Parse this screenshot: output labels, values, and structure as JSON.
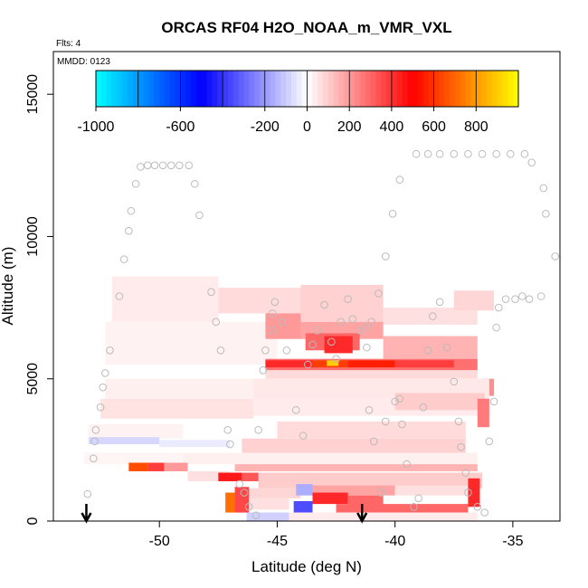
{
  "chart_data": {
    "type": "heatmap",
    "title": "ORCAS RF04 H2O_NOAA_m_VMR_VXL",
    "flights_label": "Flts: 4",
    "date_label": "MMDD: 0123",
    "xlabel": "Latitude (deg N)",
    "ylabel": "Altitude (m)",
    "xlim": [
      -54.5,
      -33
    ],
    "ylim": [
      0,
      16500
    ],
    "x_ticks": [
      -50,
      -45,
      -40,
      -35
    ],
    "x_tick_labels": [
      "-50",
      "-45",
      "-40",
      "-35"
    ],
    "y_ticks": [
      0,
      5000,
      10000,
      15000
    ],
    "y_tick_labels": [
      "0",
      "5000",
      "10000",
      "15000"
    ],
    "colorbar": {
      "range": [
        -1000,
        1000
      ],
      "ticks": [
        -1000,
        -600,
        -200,
        0,
        200,
        400,
        600,
        800
      ],
      "tick_labels": [
        "-1000",
        "-600",
        "-200",
        "0",
        "200",
        "400",
        "600",
        "800"
      ],
      "colors": [
        "#00ffff",
        "#0000ff",
        "#ffffff",
        "#ff0000",
        "#ffff00"
      ]
    },
    "arrow_latitudes": [
      -53.1,
      -41.4
    ],
    "cells": [
      {
        "lat": [
          -52,
          -47.5
        ],
        "alt": [
          7000,
          8600
        ],
        "v": 40
      },
      {
        "lat": [
          -47.5,
          -44
        ],
        "alt": [
          7300,
          8200
        ],
        "v": 70
      },
      {
        "lat": [
          -44,
          -40.5
        ],
        "alt": [
          7000,
          8300
        ],
        "v": 90
      },
      {
        "lat": [
          -40.5,
          -36.5
        ],
        "alt": [
          6900,
          7500
        ],
        "v": 60
      },
      {
        "lat": [
          -37.5,
          -35.8
        ],
        "alt": [
          7400,
          8100
        ],
        "v": 80
      },
      {
        "lat": [
          -52.3,
          -45
        ],
        "alt": [
          5500,
          7000
        ],
        "v": 25
      },
      {
        "lat": [
          -45.5,
          -44
        ],
        "alt": [
          6400,
          7300
        ],
        "v": 200
      },
      {
        "lat": [
          -44,
          -40.5
        ],
        "alt": [
          6400,
          7000
        ],
        "v": 180
      },
      {
        "lat": [
          -43.8,
          -41.5
        ],
        "alt": [
          6000,
          6600
        ],
        "v": 300
      },
      {
        "lat": [
          -43,
          -41.8
        ],
        "alt": [
          5900,
          6500
        ],
        "v": 420
      },
      {
        "lat": [
          -40.5,
          -36.5
        ],
        "alt": [
          5700,
          6500
        ],
        "v": 150
      },
      {
        "lat": [
          -45.5,
          -36.5
        ],
        "alt": [
          5300,
          5700
        ],
        "v": 280
      },
      {
        "lat": [
          -45.5,
          -43.5
        ],
        "alt": [
          5400,
          5650
        ],
        "v": 420
      },
      {
        "lat": [
          -43.5,
          -42
        ],
        "alt": [
          5400,
          5650
        ],
        "v": 620
      },
      {
        "lat": [
          -42.9,
          -42.4
        ],
        "alt": [
          5450,
          5650
        ],
        "v": 900
      },
      {
        "lat": [
          -42,
          -40
        ],
        "alt": [
          5400,
          5650
        ],
        "v": 560
      },
      {
        "lat": [
          -40,
          -37.5
        ],
        "alt": [
          5400,
          5650
        ],
        "v": 380
      },
      {
        "lat": [
          -45.5,
          -36.5
        ],
        "alt": [
          5000,
          5300
        ],
        "v": 70
      },
      {
        "lat": [
          -36.3,
          -35.8
        ],
        "alt": [
          4400,
          5000
        ],
        "v": 220
      },
      {
        "lat": [
          -52.3,
          -46
        ],
        "alt": [
          4300,
          5000
        ],
        "v": 30
      },
      {
        "lat": [
          -46,
          -36
        ],
        "alt": [
          4300,
          5000
        ],
        "v": 45
      },
      {
        "lat": [
          -52.5,
          -46
        ],
        "alt": [
          3600,
          4300
        ],
        "v": 55
      },
      {
        "lat": [
          -46,
          -36
        ],
        "alt": [
          3700,
          4300
        ],
        "v": 40
      },
      {
        "lat": [
          -40,
          -36.2
        ],
        "alt": [
          3900,
          4500
        ],
        "v": 100
      },
      {
        "lat": [
          -36.5,
          -36
        ],
        "alt": [
          3300,
          4300
        ],
        "v": 260
      },
      {
        "lat": [
          -53,
          -49
        ],
        "alt": [
          2900,
          3400
        ],
        "v": 25
      },
      {
        "lat": [
          -45,
          -37
        ],
        "alt": [
          2900,
          3500
        ],
        "v": 70
      },
      {
        "lat": [
          -53,
          -50
        ],
        "alt": [
          2700,
          2950
        ],
        "v": -80
      },
      {
        "lat": [
          -50,
          -47
        ],
        "alt": [
          2600,
          2850
        ],
        "v": -40
      },
      {
        "lat": [
          -46.5,
          -37
        ],
        "alt": [
          2400,
          2900
        ],
        "v": 90
      },
      {
        "lat": [
          -53.2,
          -49
        ],
        "alt": [
          2000,
          2400
        ],
        "v": 20
      },
      {
        "lat": [
          -49,
          -36.5
        ],
        "alt": [
          2000,
          2400
        ],
        "v": 30
      },
      {
        "lat": [
          -46.8,
          -36.5
        ],
        "alt": [
          1750,
          2000
        ],
        "v": 150
      },
      {
        "lat": [
          -51.3,
          -50.5
        ],
        "alt": [
          1750,
          2050
        ],
        "v": 650
      },
      {
        "lat": [
          -50.5,
          -49.8
        ],
        "alt": [
          1750,
          2050
        ],
        "v": 380
      },
      {
        "lat": [
          -49.8,
          -48.8
        ],
        "alt": [
          1750,
          2050
        ],
        "v": 200
      },
      {
        "lat": [
          -48.8,
          -47
        ],
        "alt": [
          1400,
          1750
        ],
        "v": 60
      },
      {
        "lat": [
          -47.5,
          -46.5
        ],
        "alt": [
          1400,
          1700
        ],
        "v": 450
      },
      {
        "lat": [
          -46.5,
          -45.5
        ],
        "alt": [
          1400,
          1700
        ],
        "v": 330
      },
      {
        "lat": [
          -45.8,
          -36.3
        ],
        "alt": [
          1150,
          1700
        ],
        "v": 100
      },
      {
        "lat": [
          -46.5,
          -44
        ],
        "alt": [
          800,
          1150
        ],
        "v": 80
      },
      {
        "lat": [
          -44.2,
          -43.5
        ],
        "alt": [
          900,
          1300
        ],
        "v": -160
      },
      {
        "lat": [
          -43.5,
          -40
        ],
        "alt": [
          900,
          1250
        ],
        "v": 180
      },
      {
        "lat": [
          -40,
          -36.5
        ],
        "alt": [
          900,
          1250
        ],
        "v": 60
      },
      {
        "lat": [
          -36.9,
          -36.4
        ],
        "alt": [
          500,
          1500
        ],
        "v": 420
      },
      {
        "lat": [
          -47.2,
          -46.8
        ],
        "alt": [
          300,
          1000
        ],
        "v": 720
      },
      {
        "lat": [
          -46.8,
          -46.2
        ],
        "alt": [
          300,
          1200
        ],
        "v": 360
      },
      {
        "lat": [
          -46.2,
          -44.5
        ],
        "alt": [
          400,
          800
        ],
        "v": 60
      },
      {
        "lat": [
          -44.3,
          -43.5
        ],
        "alt": [
          300,
          700
        ],
        "v": -350
      },
      {
        "lat": [
          -43.5,
          -42
        ],
        "alt": [
          600,
          1000
        ],
        "v": 420
      },
      {
        "lat": [
          -42,
          -40.5
        ],
        "alt": [
          500,
          900
        ],
        "v": 300
      },
      {
        "lat": [
          -42.5,
          -36.9
        ],
        "alt": [
          300,
          600
        ],
        "v": 300
      },
      {
        "lat": [
          -46.3,
          -44.5
        ],
        "alt": [
          0,
          300
        ],
        "v": -90
      },
      {
        "lat": [
          -44.5,
          -36.5
        ],
        "alt": [
          0,
          300
        ],
        "v": 40
      }
    ],
    "flight_track": [
      [
        -53.05,
        950
      ],
      [
        -52.8,
        2200
      ],
      [
        -52.75,
        2800
      ],
      [
        -52.7,
        3200
      ],
      [
        -52.5,
        4000
      ],
      [
        -52.4,
        4700
      ],
      [
        -52.3,
        5200
      ],
      [
        -52.1,
        6000
      ],
      [
        -51.7,
        7900
      ],
      [
        -51.5,
        9200
      ],
      [
        -51.3,
        10200
      ],
      [
        -51.2,
        10900
      ],
      [
        -51.0,
        11850
      ],
      [
        -50.8,
        12450
      ],
      [
        -50.5,
        12500
      ],
      [
        -50.2,
        12500
      ],
      [
        -49.85,
        12500
      ],
      [
        -49.5,
        12500
      ],
      [
        -49.15,
        12500
      ],
      [
        -48.75,
        12500
      ],
      [
        -48.5,
        11850
      ],
      [
        -48.3,
        10750
      ],
      [
        -47.8,
        8050
      ],
      [
        -47.6,
        7000
      ],
      [
        -47.4,
        6000
      ],
      [
        -47.1,
        3200
      ],
      [
        -47.0,
        2700
      ],
      [
        -46.6,
        1300
      ],
      [
        -46.4,
        1000
      ],
      [
        -46.2,
        500
      ],
      [
        -45.9,
        200
      ],
      [
        -45.8,
        3200
      ],
      [
        -45.6,
        5300
      ],
      [
        -45.5,
        6000
      ],
      [
        -45.2,
        6700
      ],
      [
        -45.2,
        7300
      ],
      [
        -45.1,
        7700
      ],
      [
        -44.8,
        7000
      ],
      [
        -44.6,
        6000
      ],
      [
        -44.2,
        3900
      ],
      [
        -43.9,
        3000
      ],
      [
        -43.7,
        5500
      ],
      [
        -43.5,
        6200
      ],
      [
        -43.3,
        6700
      ],
      [
        -43.0,
        7600
      ],
      [
        -42.7,
        6300
      ],
      [
        -42.5,
        5700
      ],
      [
        -42.3,
        7000
      ],
      [
        -42.0,
        7800
      ],
      [
        -41.8,
        7100
      ],
      [
        -41.5,
        6700
      ],
      [
        -41.2,
        6100
      ],
      [
        -41.1,
        3900
      ],
      [
        -40.9,
        2800
      ],
      [
        -40.6,
        1000
      ],
      [
        -40.4,
        3500
      ],
      [
        -40.0,
        4200
      ],
      [
        -39.8,
        4300
      ],
      [
        -39.7,
        3400
      ],
      [
        -39.5,
        2000
      ],
      [
        -39.2,
        500
      ],
      [
        -39.0,
        800
      ],
      [
        -38.8,
        4000
      ],
      [
        -38.6,
        6000
      ],
      [
        -38.4,
        7200
      ],
      [
        -38.1,
        7700
      ],
      [
        -37.8,
        6100
      ],
      [
        -37.5,
        4900
      ],
      [
        -37.3,
        3500
      ],
      [
        -37.2,
        2600
      ],
      [
        -37.0,
        1700
      ],
      [
        -36.9,
        1000
      ],
      [
        -36.5,
        500
      ],
      [
        -36.2,
        300
      ],
      [
        -36.0,
        2800
      ],
      [
        -35.8,
        4200
      ],
      [
        -35.7,
        6800
      ],
      [
        -35.6,
        7500
      ],
      [
        -35.3,
        7800
      ],
      [
        -34.9,
        7800
      ],
      [
        -34.6,
        7900
      ],
      [
        -34.3,
        7800
      ],
      [
        -33.8,
        7900
      ],
      [
        -33.6,
        10800
      ],
      [
        -33.7,
        11700
      ],
      [
        -34.2,
        12600
      ],
      [
        -34.5,
        12900
      ],
      [
        -35.1,
        12900
      ],
      [
        -35.7,
        12900
      ],
      [
        -36.3,
        12900
      ],
      [
        -36.9,
        12900
      ],
      [
        -37.5,
        12900
      ],
      [
        -38.1,
        12900
      ],
      [
        -38.6,
        12900
      ],
      [
        -39.1,
        12900
      ],
      [
        -39.8,
        12000
      ],
      [
        -40.1,
        10800
      ],
      [
        -40.4,
        9300
      ],
      [
        -40.7,
        8000
      ],
      [
        -41.0,
        7000
      ],
      [
        -41.3,
        6800
      ],
      [
        -33.2,
        9300
      ]
    ]
  }
}
